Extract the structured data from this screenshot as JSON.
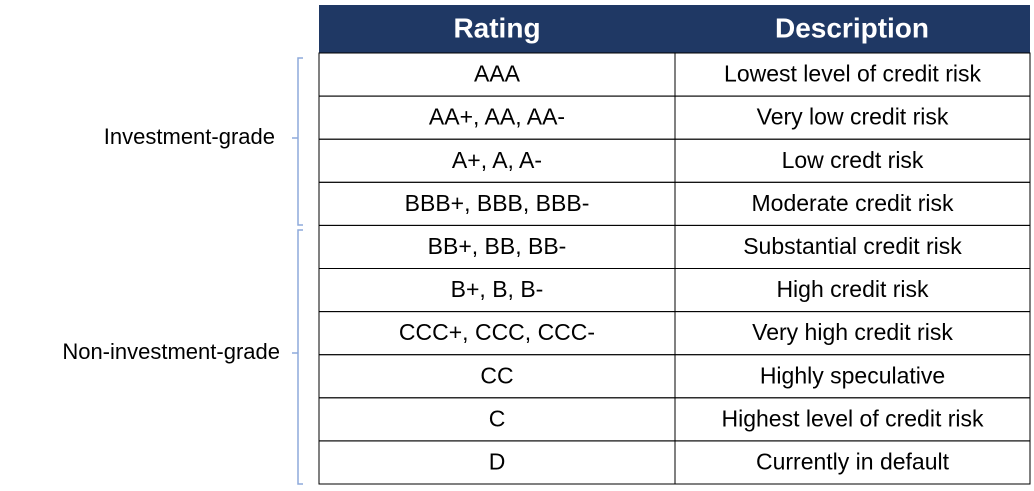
{
  "table": {
    "columns": [
      "Rating",
      "Description"
    ],
    "rows": [
      [
        "AAA",
        "Lowest level of credit risk"
      ],
      [
        "AA+, AA, AA-",
        "Very low credit risk"
      ],
      [
        "A+, A, A-",
        "Low credt risk"
      ],
      [
        "BBB+, BBB, BBB-",
        "Moderate credit risk"
      ],
      [
        "BB+, BB, BB-",
        "Substantial credit risk"
      ],
      [
        "B+, B, B-",
        "High credit risk"
      ],
      [
        "CCC+, CCC, CCC-",
        "Very high credit risk"
      ],
      [
        "CC",
        "Highly speculative"
      ],
      [
        "C",
        "Highest level of credit risk"
      ],
      [
        "D",
        "Currently in default"
      ]
    ]
  },
  "groups": [
    {
      "label": "Investment-grade"
    },
    {
      "label": "Non-investment-grade"
    }
  ]
}
